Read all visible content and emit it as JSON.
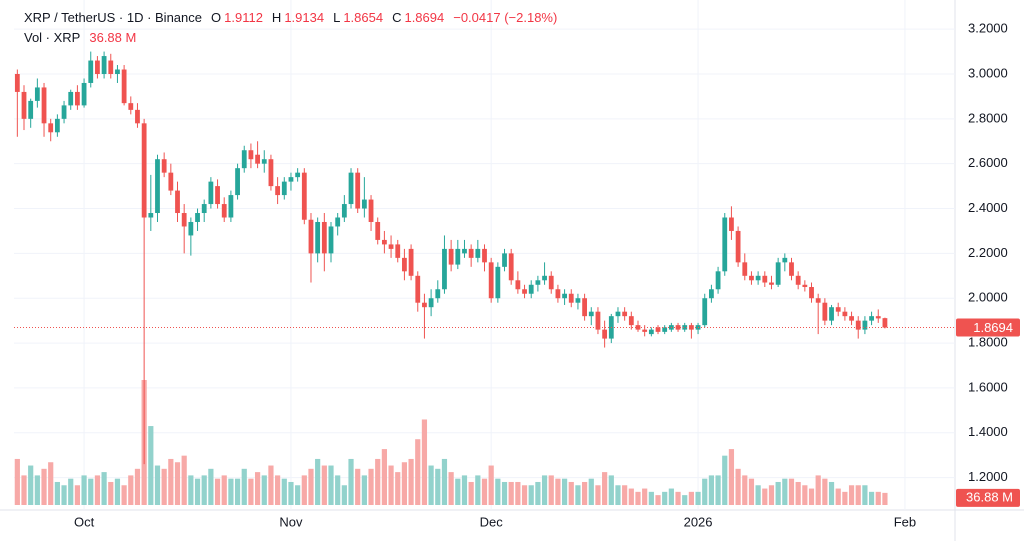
{
  "chart_data": {
    "type": "candlestick",
    "header": {
      "symbol": "XRP / TetherUS · 1D · Binance",
      "o_label": "O",
      "h_label": "H",
      "l_label": "L",
      "c_label": "C",
      "change": "−0.0417 (−2.18%)",
      "volume_title": "Vol · XRP",
      "volume_label": "36.88 M"
    },
    "open": [
      3.0,
      2.92,
      2.8,
      2.88,
      2.94,
      2.78,
      2.74,
      2.8,
      2.86,
      2.92,
      2.86,
      2.96,
      3.06,
      3.0,
      3.06,
      3.0,
      3.02,
      2.87,
      2.84,
      2.78,
      2.36,
      2.38,
      2.62,
      2.56,
      2.48,
      2.38,
      2.28,
      2.34,
      2.38,
      2.42,
      2.5,
      2.42,
      2.36,
      2.46,
      2.58,
      2.66,
      2.64,
      2.6,
      2.62,
      2.5,
      2.46,
      2.52,
      2.54,
      2.56,
      2.35,
      2.2,
      2.34,
      2.2,
      2.32,
      2.36,
      2.42,
      2.56,
      2.4,
      2.44,
      2.34,
      2.26,
      2.24,
      2.24,
      2.18,
      2.22,
      2.1,
      1.98,
      1.96,
      2.0,
      2.04,
      2.22,
      2.15,
      2.2,
      2.22,
      2.18,
      2.22,
      2.16,
      2.0,
      2.14,
      2.2,
      2.08,
      2.04,
      2.02,
      2.06,
      2.08,
      2.1,
      2.04,
      2.0,
      2.02,
      1.98,
      2.0,
      1.92,
      1.94,
      1.86,
      1.82,
      1.92,
      1.94,
      1.92,
      1.88,
      1.86,
      1.84,
      1.87,
      1.85,
      1.86,
      1.88,
      1.86,
      1.88,
      1.86,
      1.88,
      2.0,
      2.04,
      2.12,
      2.36,
      2.3,
      2.16,
      2.1,
      2.08,
      2.1,
      2.07,
      2.06,
      2.16,
      2.16,
      2.1,
      2.06,
      2.05,
      2.0,
      1.98,
      1.9,
      1.96,
      1.94,
      1.92,
      1.9,
      1.86,
      1.9,
      1.92,
      1.9112
    ],
    "high": [
      3.02,
      2.95,
      2.89,
      2.98,
      2.96,
      2.8,
      2.82,
      2.88,
      2.93,
      2.95,
      2.98,
      3.1,
      3.08,
      3.1,
      3.09,
      3.04,
      3.04,
      2.9,
      2.87,
      2.8,
      2.55,
      2.64,
      2.65,
      2.6,
      2.52,
      2.42,
      2.36,
      2.4,
      2.44,
      2.54,
      2.53,
      2.45,
      2.48,
      2.6,
      2.68,
      2.69,
      2.7,
      2.66,
      2.64,
      2.54,
      2.54,
      2.56,
      2.58,
      2.58,
      2.38,
      2.36,
      2.38,
      2.34,
      2.38,
      2.46,
      2.58,
      2.58,
      2.54,
      2.46,
      2.36,
      2.3,
      2.28,
      2.26,
      2.22,
      2.24,
      2.12,
      2.02,
      2.04,
      2.08,
      2.28,
      2.26,
      2.26,
      2.26,
      2.24,
      2.26,
      2.24,
      2.18,
      2.16,
      2.22,
      2.22,
      2.12,
      2.06,
      2.08,
      2.1,
      2.16,
      2.12,
      2.06,
      2.04,
      2.04,
      2.02,
      2.02,
      1.96,
      1.96,
      1.9,
      1.93,
      1.96,
      1.96,
      1.94,
      1.9,
      1.88,
      1.87,
      1.88,
      1.88,
      1.89,
      1.89,
      1.89,
      1.89,
      1.89,
      2.02,
      2.06,
      2.14,
      2.38,
      2.41,
      2.32,
      2.2,
      2.12,
      2.12,
      2.12,
      2.1,
      2.18,
      2.2,
      2.18,
      2.12,
      2.08,
      2.07,
      2.02,
      2.0,
      1.97,
      1.98,
      1.96,
      1.94,
      1.92,
      1.92,
      1.94,
      1.95,
      1.9134
    ],
    "low": [
      2.72,
      2.75,
      2.76,
      2.85,
      2.72,
      2.7,
      2.72,
      2.78,
      2.84,
      2.84,
      2.85,
      2.94,
      2.98,
      2.98,
      2.98,
      2.96,
      2.86,
      2.82,
      2.76,
      1.26,
      2.3,
      2.34,
      2.54,
      2.46,
      2.34,
      2.2,
      2.19,
      2.3,
      2.34,
      2.4,
      2.4,
      2.34,
      2.34,
      2.44,
      2.56,
      2.58,
      2.58,
      2.56,
      2.48,
      2.42,
      2.44,
      2.48,
      2.52,
      2.33,
      2.07,
      2.16,
      2.12,
      2.16,
      2.28,
      2.34,
      2.4,
      2.38,
      2.36,
      2.3,
      2.24,
      2.2,
      2.18,
      2.16,
      2.08,
      2.08,
      1.94,
      1.82,
      1.92,
      1.98,
      2.02,
      2.12,
      2.13,
      2.18,
      2.14,
      2.16,
      2.12,
      1.98,
      1.98,
      2.12,
      2.06,
      2.02,
      2.0,
      2.0,
      2.03,
      2.06,
      2.02,
      1.98,
      1.97,
      1.96,
      1.95,
      1.9,
      1.88,
      1.84,
      1.78,
      1.8,
      1.89,
      1.9,
      1.86,
      1.85,
      1.83,
      1.83,
      1.84,
      1.84,
      1.85,
      1.85,
      1.85,
      1.82,
      1.84,
      1.87,
      1.98,
      2.02,
      2.1,
      2.26,
      2.14,
      2.08,
      2.06,
      2.06,
      2.05,
      2.04,
      2.05,
      2.12,
      2.08,
      2.04,
      2.03,
      1.98,
      1.84,
      1.88,
      1.88,
      1.92,
      1.9,
      1.88,
      1.82,
      1.84,
      1.88,
      1.89,
      1.8654
    ],
    "close": [
      2.92,
      2.8,
      2.88,
      2.94,
      2.78,
      2.74,
      2.8,
      2.86,
      2.92,
      2.86,
      2.96,
      3.06,
      3.0,
      3.08,
      3.0,
      3.02,
      2.87,
      2.84,
      2.78,
      2.36,
      2.38,
      2.62,
      2.56,
      2.48,
      2.38,
      2.32,
      2.34,
      2.38,
      2.42,
      2.52,
      2.42,
      2.36,
      2.46,
      2.58,
      2.66,
      2.62,
      2.6,
      2.62,
      2.5,
      2.46,
      2.52,
      2.54,
      2.56,
      2.35,
      2.2,
      2.34,
      2.2,
      2.32,
      2.36,
      2.42,
      2.56,
      2.4,
      2.44,
      2.34,
      2.26,
      2.24,
      2.22,
      2.18,
      2.12,
      2.1,
      1.98,
      1.96,
      2.0,
      2.04,
      2.22,
      2.15,
      2.22,
      2.22,
      2.18,
      2.22,
      2.16,
      2.0,
      2.14,
      2.2,
      2.08,
      2.04,
      2.02,
      2.06,
      2.08,
      2.1,
      2.04,
      2.0,
      2.02,
      1.98,
      2.0,
      1.92,
      1.94,
      1.86,
      1.82,
      1.92,
      1.94,
      1.92,
      1.88,
      1.86,
      1.85,
      1.86,
      1.85,
      1.87,
      1.88,
      1.86,
      1.88,
      1.86,
      1.88,
      2.0,
      2.04,
      2.12,
      2.36,
      2.3,
      2.16,
      2.1,
      2.08,
      2.1,
      2.07,
      2.06,
      2.16,
      2.18,
      2.1,
      2.06,
      2.05,
      2.0,
      1.98,
      1.9,
      1.96,
      1.94,
      1.92,
      1.9,
      1.86,
      1.9,
      1.92,
      1.91,
      1.8694
    ],
    "volume": [
      140,
      90,
      120,
      90,
      110,
      130,
      70,
      60,
      80,
      60,
      90,
      80,
      90,
      100,
      70,
      80,
      60,
      90,
      110,
      380,
      240,
      120,
      110,
      140,
      130,
      150,
      90,
      80,
      90,
      110,
      80,
      90,
      80,
      80,
      110,
      80,
      100,
      90,
      120,
      90,
      80,
      70,
      60,
      90,
      110,
      140,
      120,
      120,
      90,
      60,
      140,
      110,
      90,
      110,
      140,
      170,
      120,
      100,
      130,
      140,
      200,
      260,
      120,
      110,
      140,
      100,
      80,
      90,
      70,
      90,
      80,
      120,
      80,
      70,
      70,
      70,
      60,
      60,
      70,
      90,
      90,
      80,
      80,
      70,
      60,
      70,
      80,
      60,
      100,
      90,
      60,
      60,
      50,
      40,
      50,
      40,
      30,
      40,
      50,
      40,
      30,
      40,
      40,
      80,
      90,
      90,
      150,
      170,
      110,
      90,
      80,
      60,
      50,
      60,
      70,
      80,
      80,
      70,
      60,
      50,
      90,
      80,
      70,
      50,
      40,
      60,
      60,
      60,
      40,
      40,
      36.88
    ],
    "ylim": [
      1.06,
      3.33
    ],
    "yticks": [
      {
        "value": 1.2,
        "label": "1.2000"
      },
      {
        "value": 1.4,
        "label": "1.4000"
      },
      {
        "value": 1.6,
        "label": "1.6000"
      },
      {
        "value": 1.8,
        "label": "1.8000"
      },
      {
        "value": 2.0,
        "label": "2.0000"
      },
      {
        "value": 2.2,
        "label": "2.2000"
      },
      {
        "value": 2.4,
        "label": "2.4000"
      },
      {
        "value": 2.6,
        "label": "2.6000"
      },
      {
        "value": 2.8,
        "label": "2.8000"
      },
      {
        "value": 3.0,
        "label": "3.0000"
      },
      {
        "value": 3.2,
        "label": "3.2000"
      }
    ],
    "xlim": [
      -0.5,
      140.5
    ],
    "xticks": [
      {
        "value": 10,
        "label": "Oct"
      },
      {
        "value": 41,
        "label": "Nov"
      },
      {
        "value": 71,
        "label": "Dec"
      },
      {
        "value": 102,
        "label": "2026"
      },
      {
        "value": 133,
        "label": "Feb"
      }
    ],
    "up_color": "#26a69a",
    "down_color": "#ef5350",
    "up_volume_color": "#92d2cc",
    "down_volume_color": "#f7a9a7",
    "grid": true,
    "last_price_line": true
  }
}
